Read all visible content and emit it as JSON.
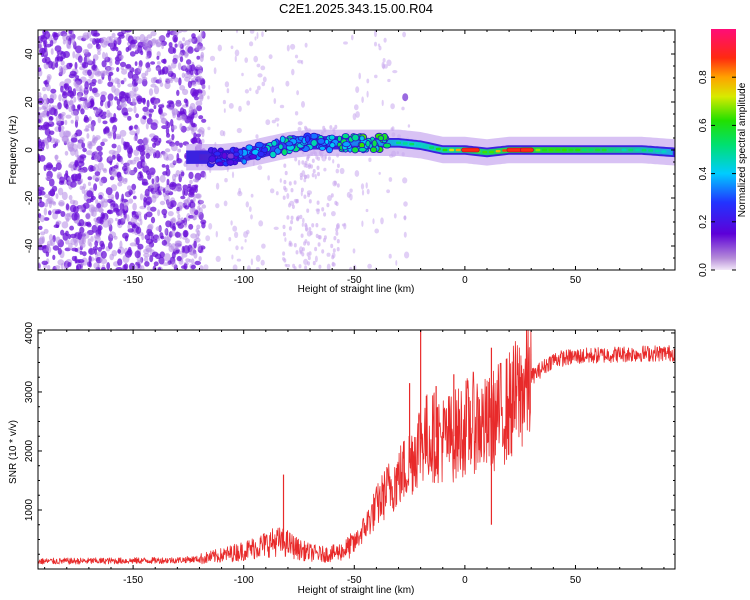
{
  "title": "C2E1.2025.343.15.00.R04",
  "colors": {
    "snr_line": "#e82a2a",
    "axis": "#000000",
    "background": "#ffffff"
  },
  "chart_data": [
    {
      "type": "heatmap",
      "name": "spectrogram",
      "xlabel": "Height of straight line (km)",
      "ylabel": "Frequency (Hz)",
      "xlim": [
        -193,
        95
      ],
      "ylim": [
        -50,
        50
      ],
      "xticks": [
        -150,
        -100,
        -50,
        0,
        50
      ],
      "yticks": [
        -40,
        -20,
        0,
        20,
        40
      ],
      "xtick_labels": [
        "-150",
        "-100",
        "-50",
        "0",
        "50"
      ],
      "ytick_labels": [
        "-40",
        "-20",
        "0",
        "20",
        "40"
      ],
      "signal_track": {
        "x": [
          -125,
          -110,
          -100,
          -90,
          -80,
          -70,
          -60,
          -50,
          -40,
          -30,
          -20,
          -10,
          0,
          10,
          20,
          30,
          40,
          50,
          60,
          70,
          80,
          95
        ],
        "center_hz": [
          -3,
          -3,
          -2,
          0,
          2,
          3,
          3,
          3,
          3,
          3,
          2,
          0,
          0,
          -1,
          0,
          0,
          0,
          0,
          0,
          0,
          0,
          -1
        ],
        "amplitude": [
          0.12,
          0.15,
          0.2,
          0.3,
          0.38,
          0.35,
          0.4,
          0.45,
          0.5,
          0.55,
          0.45,
          0.6,
          0.85,
          0.6,
          0.9,
          0.7,
          0.6,
          0.58,
          0.55,
          0.52,
          0.5,
          0.45
        ]
      },
      "noise_region": {
        "x_range": [
          -193,
          -120
        ],
        "amplitude": 0.05
      },
      "colorbar": {
        "label": "Normalized spectral amplitude",
        "range": [
          0.0,
          1.0
        ],
        "ticks": [
          0.0,
          0.2,
          0.4,
          0.6,
          0.8
        ],
        "tick_labels": [
          "0.0",
          "0.2",
          "0.4",
          "0.6",
          "0.8"
        ]
      }
    },
    {
      "type": "line",
      "name": "snr",
      "xlabel": "Height of straight line (km)",
      "ylabel": "SNR (10 * v/v)",
      "xlim": [
        -193,
        95
      ],
      "ylim": [
        0,
        4050
      ],
      "xticks": [
        -150,
        -100,
        -50,
        0,
        50
      ],
      "yticks": [
        1000,
        2000,
        3000,
        4000
      ],
      "xtick_labels": [
        "-150",
        "-100",
        "-50",
        "0",
        "50"
      ],
      "ytick_labels": [
        "1000",
        "2000",
        "3000",
        "4000"
      ],
      "series": [
        {
          "name": "SNR",
          "x": [
            -193,
            -170,
            -150,
            -130,
            -120,
            -110,
            -100,
            -95,
            -90,
            -85,
            -80,
            -75,
            -70,
            -65,
            -60,
            -55,
            -50,
            -45,
            -40,
            -35,
            -30,
            -25,
            -20,
            -15,
            -10,
            -5,
            0,
            5,
            10,
            15,
            20,
            25,
            30,
            35,
            40,
            50,
            60,
            70,
            80,
            95
          ],
          "values": [
            130,
            135,
            140,
            150,
            170,
            230,
            310,
            360,
            420,
            470,
            430,
            330,
            280,
            250,
            260,
            310,
            430,
            720,
            1050,
            1350,
            1550,
            1800,
            2200,
            2250,
            2200,
            2250,
            2400,
            2500,
            2400,
            2600,
            2750,
            3000,
            3250,
            3400,
            3550,
            3600,
            3620,
            3640,
            3650,
            3660
          ]
        }
      ],
      "spikes": [
        {
          "x": -82,
          "value": 1600
        },
        {
          "x": -25,
          "value": 3150
        },
        {
          "x": -20,
          "value": 4050
        },
        {
          "x": -13,
          "value": 3100
        },
        {
          "x": -5,
          "value": 3300
        },
        {
          "x": 12,
          "value": 3750
        },
        {
          "x": 12,
          "value": 750
        }
      ]
    }
  ]
}
